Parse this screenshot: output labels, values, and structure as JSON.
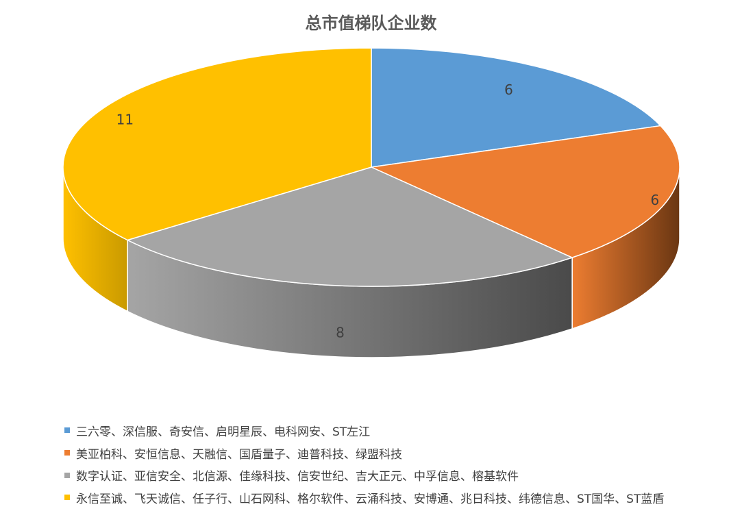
{
  "chart_data": {
    "type": "pie",
    "title": "总市值梯队企业数",
    "slices": [
      {
        "label": "三六零、深信服、奇安信、启明星辰、电科网安、ST左江",
        "value": 6,
        "value_label": "6",
        "color": "#5B9BD5",
        "side_color": "#3E6FA3"
      },
      {
        "label": "美亚柏科、安恒信息、天融信、国盾量子、迪普科技、绿盟科技",
        "value": 6,
        "value_label": "6",
        "color": "#ED7D31",
        "side_color": "#6A3612"
      },
      {
        "label": "数字认证、亚信安全、北信源、佳缘科技、信安世纪、吉大正元、中孚信息、榕基软件",
        "value": 8,
        "value_label": "8",
        "color": "#A5A5A5",
        "side_color": "#4A4A4A"
      },
      {
        "label": "永信至诚、飞天诚信、任子行、山石网科、格尔软件、云涌科技、安博通、兆日科技、纬德信息、ST国华、ST蓝盾",
        "value": 11,
        "value_label": "11",
        "color": "#FFC000",
        "side_color": "#C99A00"
      }
    ],
    "start_angle": "12 o'clock",
    "direction": "clockwise",
    "legend_position": "bottom-left",
    "style": "3d-pie"
  }
}
